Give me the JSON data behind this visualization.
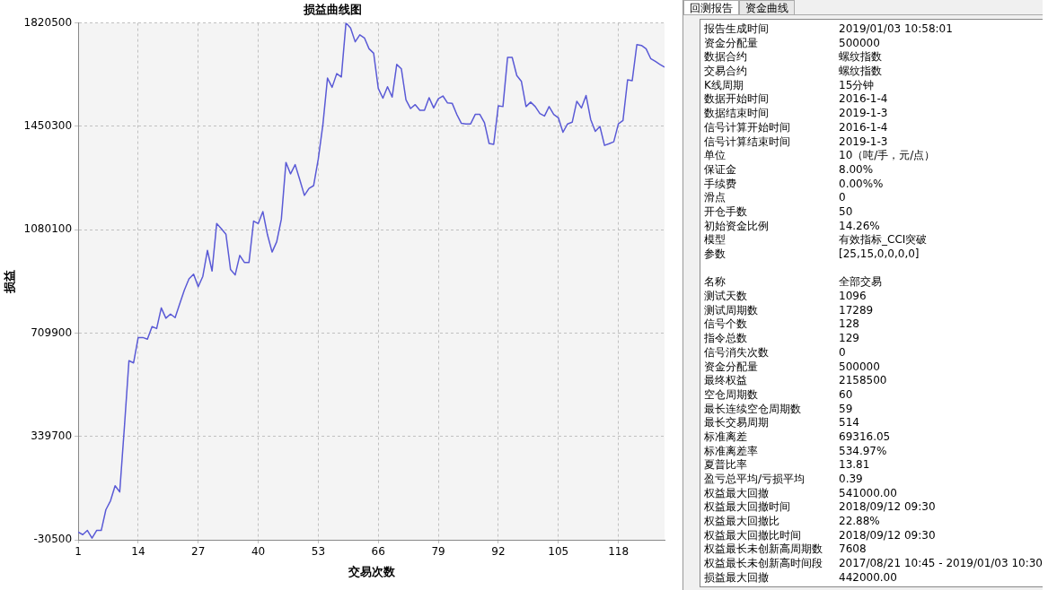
{
  "chart_data": [
    {
      "type": "line",
      "title": "损益曲线图",
      "xlabel": "交易次数",
      "ylabel": "损益",
      "x": [
        1,
        2,
        3,
        4,
        5,
        6,
        7,
        8,
        9,
        10,
        11,
        12,
        13,
        14,
        15,
        16,
        17,
        18,
        19,
        20,
        21,
        22,
        23,
        24,
        25,
        26,
        27,
        28,
        29,
        30,
        31,
        32,
        33,
        34,
        35,
        36,
        37,
        38,
        39,
        40,
        41,
        42,
        43,
        44,
        45,
        46,
        47,
        48,
        49,
        50,
        51,
        52,
        53,
        54,
        55,
        56,
        57,
        58,
        59,
        60,
        61,
        62,
        63,
        64,
        65,
        66,
        67,
        68,
        69,
        70,
        71,
        72,
        73,
        74,
        75,
        76,
        77,
        78,
        79,
        80,
        81,
        82,
        83,
        84,
        85,
        86,
        87,
        88,
        89,
        90,
        91,
        92,
        93,
        94,
        95,
        96,
        97,
        98,
        99,
        100,
        101,
        102,
        103,
        104,
        105,
        106,
        107,
        108,
        109,
        110,
        111,
        112,
        113,
        114,
        115,
        116,
        117,
        118,
        119,
        120,
        121,
        122,
        123,
        124,
        125,
        126,
        127,
        128
      ],
      "series": [
        {
          "color": "#5a5ad6",
          "values": [
            -3000,
            -12000,
            3000,
            -24500,
            3000,
            3000,
            77000,
            109000,
            163000,
            141000,
            370000,
            611000,
            603000,
            694000,
            694000,
            688000,
            733000,
            726000,
            800000,
            763000,
            778000,
            765000,
            815000,
            864000,
            904000,
            921000,
            876000,
            913000,
            1006000,
            932000,
            1102000,
            1084000,
            1064000,
            938000,
            918000,
            988000,
            963000,
            963000,
            1111000,
            1102000,
            1145000,
            1062000,
            1000000,
            1037000,
            1117000,
            1321000,
            1280000,
            1313000,
            1259000,
            1203000,
            1228000,
            1238000,
            1333000,
            1456000,
            1623000,
            1590000,
            1639000,
            1627000,
            1820500,
            1802000,
            1753000,
            1778000,
            1767000,
            1728000,
            1712000,
            1586000,
            1551000,
            1592000,
            1555000,
            1672000,
            1656000,
            1545000,
            1514000,
            1528000,
            1508000,
            1508000,
            1553000,
            1516000,
            1549000,
            1559000,
            1534000,
            1533000,
            1493000,
            1461000,
            1459000,
            1459000,
            1493000,
            1493000,
            1463000,
            1389000,
            1386000,
            1524000,
            1521000,
            1697000,
            1697000,
            1632000,
            1611000,
            1521000,
            1537000,
            1521000,
            1496000,
            1487000,
            1521000,
            1493000,
            1481000,
            1429000,
            1459000,
            1465000,
            1540000,
            1516000,
            1561000,
            1475000,
            1432000,
            1450000,
            1382000,
            1388000,
            1395000,
            1459000,
            1471000,
            1617000,
            1614000,
            1743000,
            1740000,
            1728000,
            1693000,
            1683000,
            1672000,
            1662000
          ]
        }
      ],
      "xlim": [
        1,
        128
      ],
      "xticks": [
        1,
        14,
        27,
        40,
        53,
        66,
        79,
        92,
        105,
        118
      ],
      "ylim": [
        -30500,
        1820500
      ],
      "yticks": [
        -30500,
        339700,
        709900,
        1080100,
        1450300,
        1820500
      ],
      "grid": true,
      "legend": false,
      "marker": "none",
      "line_style": "solid"
    },
    {
      "type": "other",
      "annotations": [
        "回测报告",
        "资金曲线"
      ],
      "categories": [
        "报告生成时间",
        "资金分配量",
        "数据合约",
        "交易合约",
        "K线周期",
        "数据开始时间",
        "数据结束时间",
        "信号计算开始时间",
        "信号计算结束时间",
        "单位",
        "保证金",
        "手续费",
        "滑点",
        "开仓手数",
        "初始资金比例",
        "模型",
        "参数",
        null,
        "名称",
        "测试天数",
        "测试周期数",
        "信号个数",
        "指令总数",
        "信号消失次数",
        "资金分配量",
        "最终权益",
        "空仓周期数",
        "最长连续空仓周期数",
        "最长交易周期",
        "标准离差",
        "标准离差率",
        "夏普比率",
        "盈亏总平均/亏损平均",
        "权益最大回撤",
        "权益最大回撤时间",
        "权益最大回撤比",
        "权益最大回撤比时间",
        "权益最长未创新高周期数",
        "权益最长未创新高时间段",
        "损益最大回撤"
      ],
      "value_labels": [
        "2019/01/03 10:58:01",
        "500000",
        "螺纹指数",
        "螺纹指数",
        "15分钟",
        "2016-1-4",
        "2019-1-3",
        "2016-1-4",
        "2019-1-3",
        "10（吨/手，元/点）",
        "8.00%",
        "0.00%%",
        "0",
        "50",
        "14.26%",
        "有效指标_CCI突破",
        "[25,15,0,0,0,0]",
        null,
        "全部交易",
        "1096",
        "17289",
        "128",
        "129",
        "0",
        "500000",
        "2158500",
        "60",
        "59",
        "514",
        "69316.05",
        "534.97%",
        "13.81",
        "0.39",
        "541000.00",
        "2018/09/12 09:30",
        "22.88%",
        "2018/09/12 09:30",
        "7608",
        "2017/08/21 10:45 - 2019/01/03 10:30",
        "442000.00"
      ]
    }
  ]
}
